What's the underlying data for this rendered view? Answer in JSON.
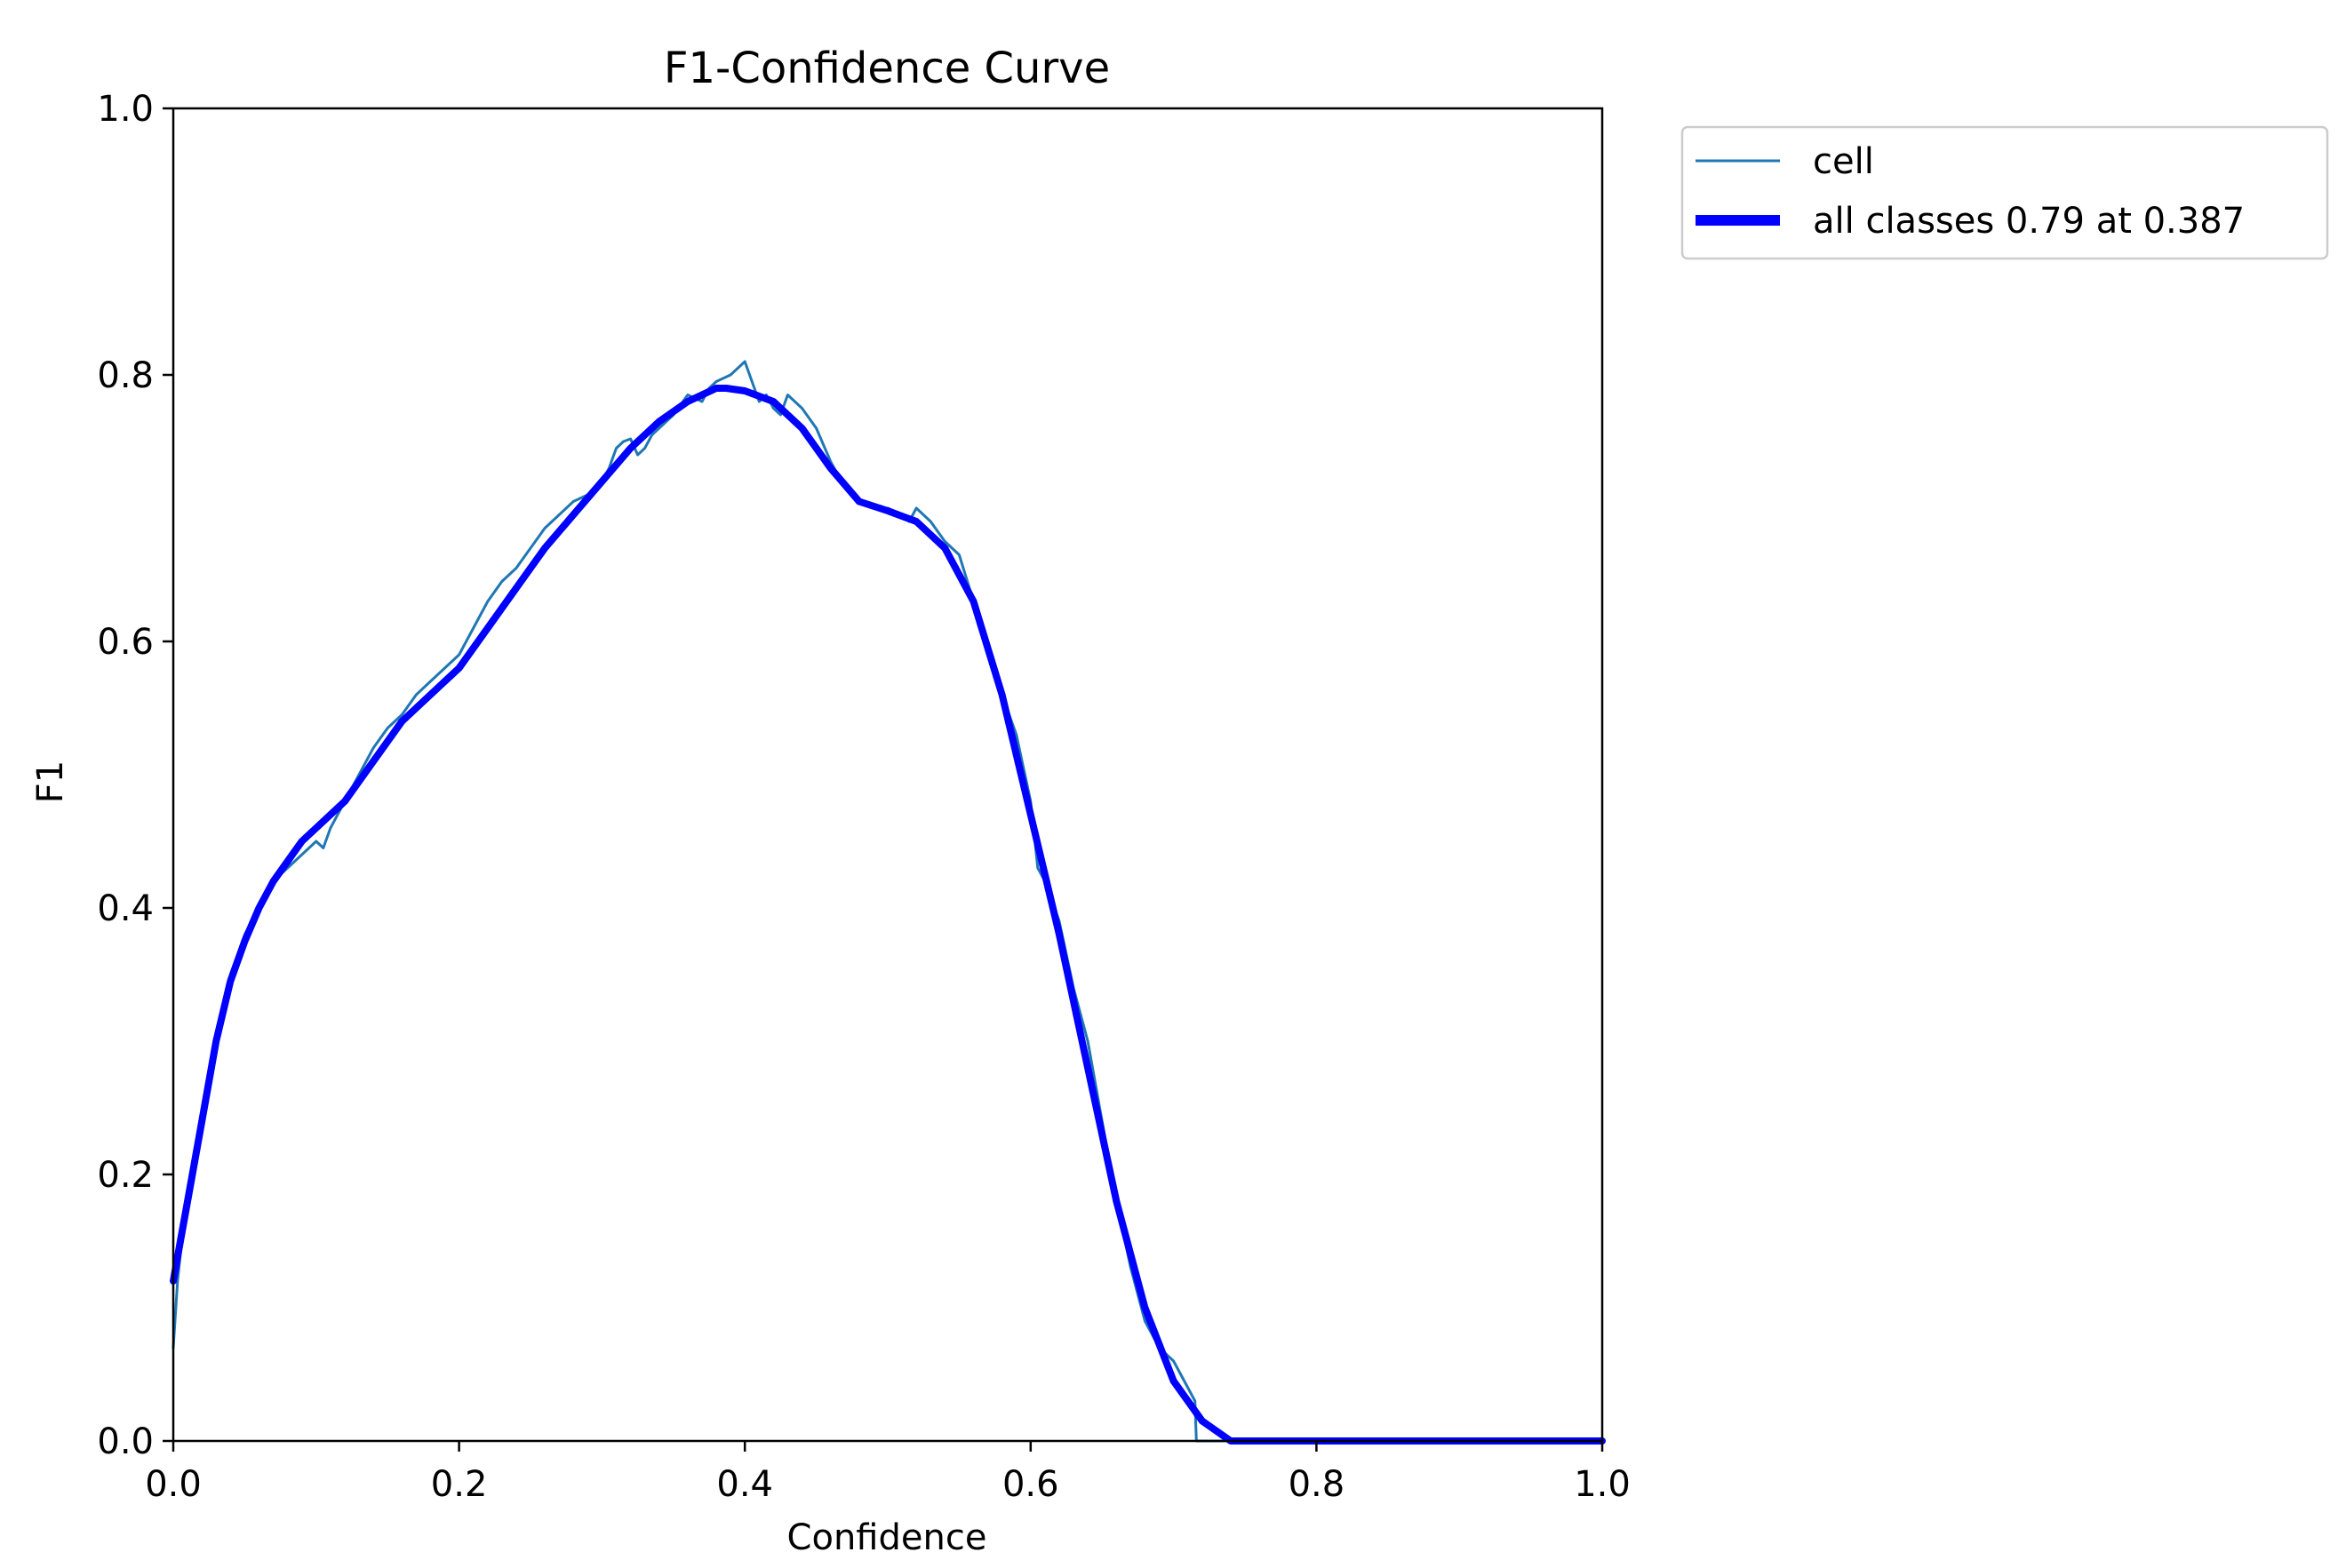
{
  "chart_data": {
    "type": "line",
    "title": "F1-Confidence Curve",
    "xlabel": "Confidence",
    "ylabel": "F1",
    "xlim": [
      0,
      1
    ],
    "ylim": [
      0,
      1
    ],
    "xticks": [
      "0.0",
      "0.2",
      "0.4",
      "0.6",
      "0.8",
      "1.0"
    ],
    "yticks": [
      "0.0",
      "0.2",
      "0.4",
      "0.6",
      "0.8",
      "1.0"
    ],
    "grid": false,
    "legend_position": "outside top-right",
    "series": [
      {
        "name": "cell",
        "color": "#1f77b4",
        "x": [
          0.0,
          0.003,
          0.006,
          0.01,
          0.02,
          0.03,
          0.04,
          0.05,
          0.06,
          0.07,
          0.08,
          0.09,
          0.1,
          0.105,
          0.11,
          0.12,
          0.13,
          0.14,
          0.15,
          0.16,
          0.17,
          0.18,
          0.19,
          0.2,
          0.21,
          0.22,
          0.23,
          0.24,
          0.25,
          0.26,
          0.27,
          0.28,
          0.29,
          0.3,
          0.305,
          0.31,
          0.315,
          0.32,
          0.325,
          0.33,
          0.335,
          0.34,
          0.35,
          0.36,
          0.37,
          0.375,
          0.38,
          0.39,
          0.4,
          0.41,
          0.415,
          0.42,
          0.425,
          0.43,
          0.44,
          0.45,
          0.46,
          0.47,
          0.48,
          0.49,
          0.5,
          0.51,
          0.515,
          0.52,
          0.53,
          0.54,
          0.55,
          0.56,
          0.57,
          0.58,
          0.59,
          0.6,
          0.605,
          0.61,
          0.62,
          0.63,
          0.64,
          0.65,
          0.66,
          0.67,
          0.68,
          0.69,
          0.7,
          0.71,
          0.715,
          0.716,
          0.72,
          0.74,
          0.8,
          0.9,
          1.0
        ],
        "y": [
          0.07,
          0.12,
          0.15,
          0.18,
          0.24,
          0.3,
          0.35,
          0.38,
          0.4,
          0.42,
          0.43,
          0.44,
          0.45,
          0.445,
          0.46,
          0.48,
          0.5,
          0.52,
          0.535,
          0.545,
          0.56,
          0.57,
          0.58,
          0.59,
          0.61,
          0.63,
          0.645,
          0.655,
          0.67,
          0.685,
          0.695,
          0.705,
          0.71,
          0.72,
          0.73,
          0.745,
          0.75,
          0.752,
          0.74,
          0.745,
          0.755,
          0.76,
          0.77,
          0.785,
          0.78,
          0.79,
          0.795,
          0.8,
          0.81,
          0.78,
          0.785,
          0.775,
          0.77,
          0.785,
          0.775,
          0.76,
          0.735,
          0.715,
          0.705,
          0.7,
          0.7,
          0.695,
          0.69,
          0.7,
          0.69,
          0.675,
          0.665,
          0.63,
          0.6,
          0.56,
          0.53,
          0.48,
          0.43,
          0.42,
          0.39,
          0.34,
          0.3,
          0.24,
          0.18,
          0.13,
          0.09,
          0.07,
          0.06,
          0.04,
          0.03,
          0.0,
          0.0,
          0.0,
          0.0,
          0.0,
          0.0
        ]
      },
      {
        "name": "all classes 0.79 at 0.387",
        "color": "#0000ff",
        "x": [
          0.0,
          0.005,
          0.01,
          0.02,
          0.03,
          0.04,
          0.05,
          0.06,
          0.07,
          0.08,
          0.09,
          0.1,
          0.12,
          0.14,
          0.16,
          0.18,
          0.2,
          0.22,
          0.24,
          0.26,
          0.28,
          0.3,
          0.32,
          0.34,
          0.36,
          0.38,
          0.387,
          0.4,
          0.42,
          0.44,
          0.46,
          0.48,
          0.5,
          0.52,
          0.54,
          0.56,
          0.58,
          0.6,
          0.62,
          0.64,
          0.66,
          0.68,
          0.7,
          0.72,
          0.74,
          0.8,
          0.9,
          1.0
        ],
        "y": [
          0.12,
          0.15,
          0.18,
          0.24,
          0.3,
          0.345,
          0.375,
          0.4,
          0.42,
          0.435,
          0.45,
          0.46,
          0.48,
          0.51,
          0.54,
          0.56,
          0.58,
          0.61,
          0.64,
          0.67,
          0.695,
          0.72,
          0.745,
          0.765,
          0.78,
          0.79,
          0.79,
          0.788,
          0.78,
          0.76,
          0.73,
          0.705,
          0.698,
          0.69,
          0.67,
          0.63,
          0.56,
          0.47,
          0.38,
          0.28,
          0.18,
          0.1,
          0.045,
          0.015,
          0.0,
          0.0,
          0.0,
          0.0
        ]
      }
    ]
  }
}
